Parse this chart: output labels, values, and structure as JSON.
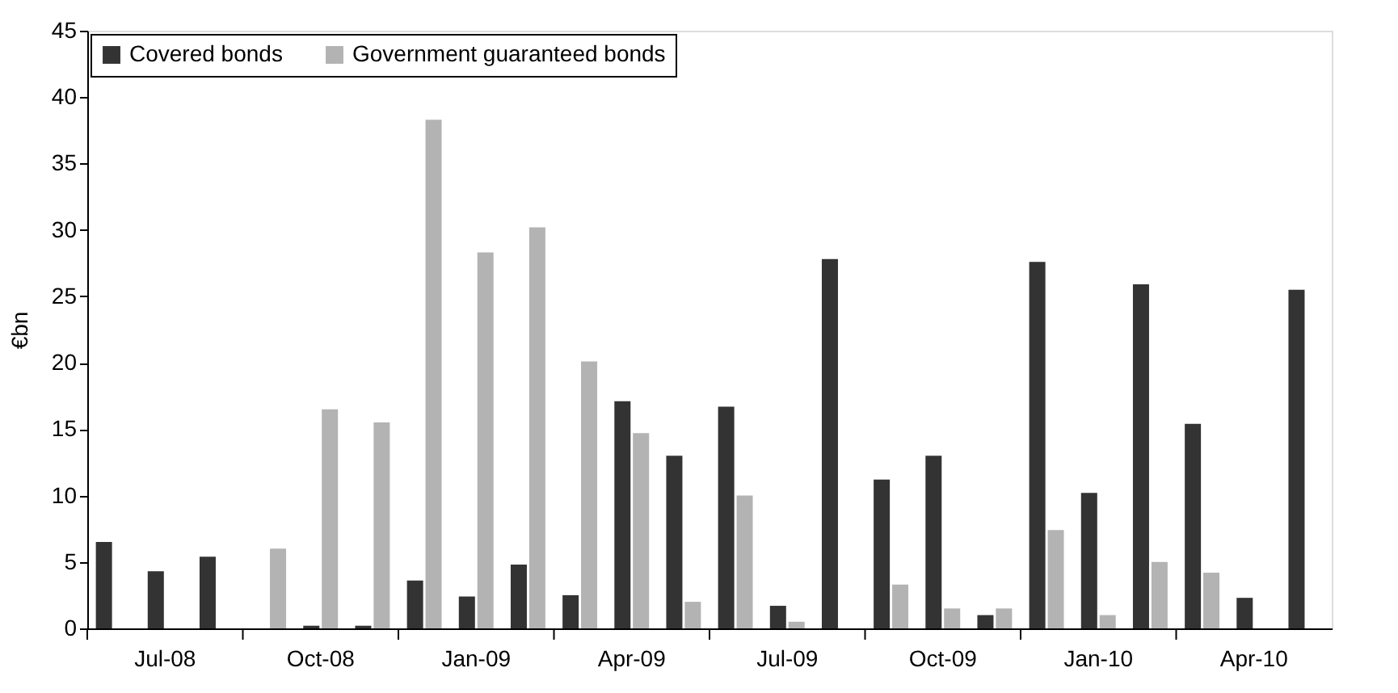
{
  "chart_data": {
    "type": "bar",
    "ylabel": "€bn",
    "categories": [
      null,
      "Jul-08",
      null,
      null,
      "Oct-08",
      null,
      null,
      "Jan-09",
      null,
      null,
      "Apr-09",
      null,
      null,
      "Jul-09",
      null,
      null,
      "Oct-09",
      null,
      null,
      "Jan-10",
      null,
      null,
      "Apr-10",
      null
    ],
    "series": [
      {
        "name": "Covered bonds",
        "color": "#333333",
        "values": [
          6.5,
          4.3,
          5.4,
          0,
          0.2,
          0.2,
          3.6,
          2.4,
          4.8,
          2.5,
          17.1,
          13,
          16.7,
          1.7,
          27.8,
          11.2,
          13,
          1.0,
          27.6,
          10.2,
          25.9,
          15.4,
          2.3,
          25.5
        ]
      },
      {
        "name": "Government guaranteed bonds",
        "color": "#b3b3b3",
        "values": [
          0,
          0,
          0,
          6.0,
          16.5,
          15.5,
          38.3,
          28.3,
          30.2,
          20.1,
          14.7,
          2.0,
          10.0,
          0.5,
          0,
          3.3,
          1.5,
          1.5,
          7.4,
          1.0,
          5.0,
          4.2,
          0,
          0
        ]
      }
    ],
    "ylim": [
      0,
      45
    ],
    "yticks": [
      0,
      5,
      10,
      15,
      20,
      25,
      30,
      35,
      40,
      45
    ],
    "grid": false,
    "legend": "top left"
  }
}
